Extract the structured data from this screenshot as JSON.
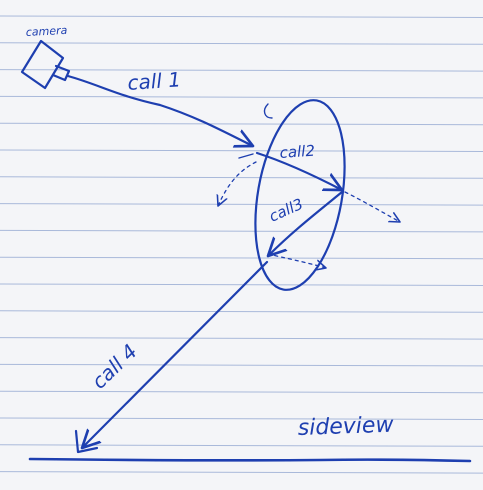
{
  "colors": {
    "paper": "#f4f5f8",
    "rule": "#a9b9da",
    "ink": "#1e3fb0"
  },
  "labels": {
    "camera": "camera",
    "call1": "call 1",
    "call2": "call2",
    "call3": "call3",
    "call4": "call 4",
    "side_view": "sideview"
  }
}
